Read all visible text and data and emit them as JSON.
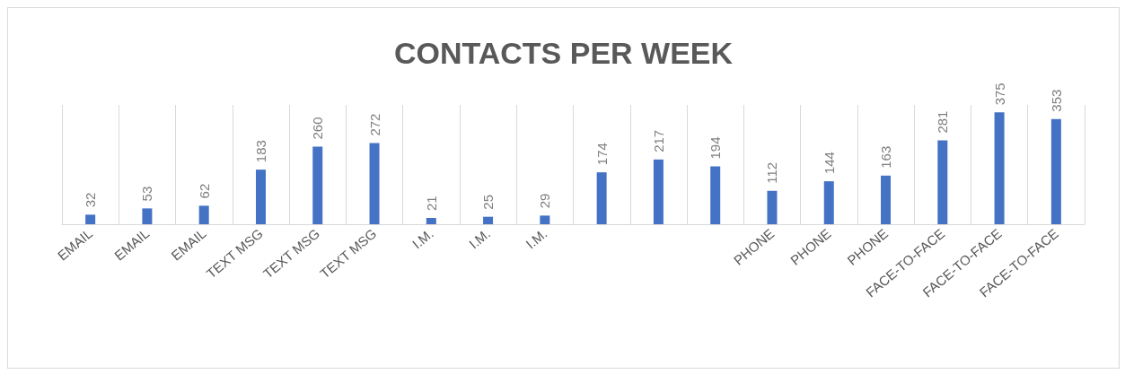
{
  "chart_data": {
    "type": "bar",
    "title": "CONTACTS PER WEEK",
    "categories": [
      "EMAIL",
      "EMAIL",
      "EMAIL",
      "TEXT MSG",
      "TEXT MSG",
      "TEXT MSG",
      "I.M.",
      "I.M.",
      "I.M.",
      null,
      null,
      null,
      "PHONE",
      "PHONE",
      "PHONE",
      "FACE-TO-FACE",
      "FACE-TO-FACE",
      "FACE-TO-FACE"
    ],
    "values": [
      32,
      53,
      62,
      183,
      260,
      272,
      21,
      25,
      29,
      174,
      217,
      194,
      112,
      144,
      163,
      281,
      375,
      353
    ],
    "color": "#4472c4",
    "data_labels": true,
    "grid": "x",
    "tick_labels": "x"
  }
}
